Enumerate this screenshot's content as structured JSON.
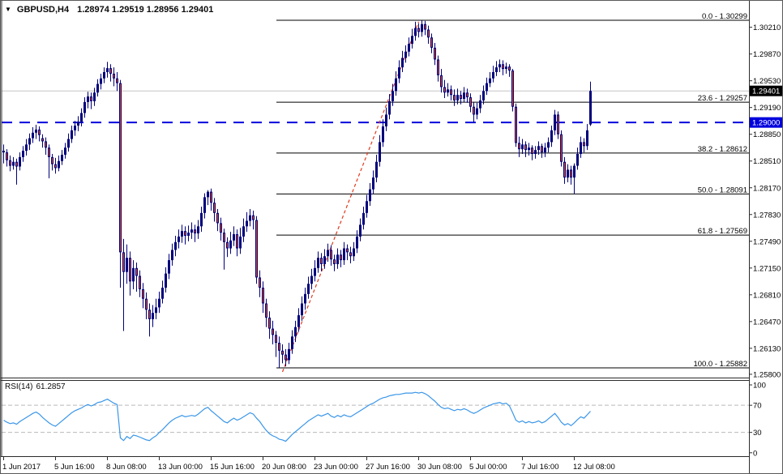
{
  "title": {
    "symbol": "GBPUSD,H4",
    "ohlc": "1.28974 1.29519 1.28956 1.29401"
  },
  "rsi_label": {
    "name": "RSI(14)",
    "value": "61.2857"
  },
  "colors": {
    "background": "#ffffff",
    "bull": "#00007b",
    "bear_core": "#e8491b",
    "outline": "#00007b",
    "fib_line": "#000000",
    "text": "#000000",
    "hline": "#0000dd",
    "hline_tag_bg": "#0000dd",
    "current_line": "#c6c6c6",
    "current_tag_bg": "#000000",
    "tag_text": "#ffffff",
    "rsi_line": "#3a96e8",
    "rsi_grid": "#b9b9b9",
    "trendline": "#e03a1e",
    "border": "#2b2b2b"
  },
  "chart_data": {
    "type": "candlestick",
    "title": "GBPUSD,H4",
    "symbol": "GBPUSD",
    "timeframe": "H4",
    "current_bar": {
      "open": 1.28974,
      "high": 1.29519,
      "low": 1.28956,
      "close": 1.29401
    },
    "price_axis": {
      "ylim": [
        1.25758,
        1.30546
      ],
      "ticks": [
        "1.30210",
        "1.29870",
        "1.29530",
        "1.29190",
        "1.28850",
        "1.28510",
        "1.28170",
        "1.27830",
        "1.27490",
        "1.27150",
        "1.26810",
        "1.26470",
        "1.26130",
        "1.25800"
      ]
    },
    "time_axis": {
      "labels": [
        {
          "bar": 0,
          "text": "1 Jun 2017"
        },
        {
          "bar": 16,
          "text": "5 Jun 16:00"
        },
        {
          "bar": 32,
          "text": "8 Jun 08:00"
        },
        {
          "bar": 48,
          "text": "13 Jun 00:00"
        },
        {
          "bar": 64,
          "text": "15 Jun 16:00"
        },
        {
          "bar": 80,
          "text": "20 Jun 08:00"
        },
        {
          "bar": 96,
          "text": "23 Jun 00:00"
        },
        {
          "bar": 112,
          "text": "27 Jun 16:00"
        },
        {
          "bar": 128,
          "text": "30 Jun 08:00"
        },
        {
          "bar": 144,
          "text": "5 Jul 00:00"
        },
        {
          "bar": 160,
          "text": "7 Jul 16:00"
        },
        {
          "bar": 176,
          "text": "12 Jul 08:00"
        }
      ]
    },
    "fibonacci": {
      "levels": [
        {
          "pct": "0.0",
          "price_text": "1.30299"
        },
        {
          "pct": "23.6",
          "price_text": "1.29257"
        },
        {
          "pct": "38.2",
          "price_text": "1.28612"
        },
        {
          "pct": "50.0",
          "price_text": "1.28091"
        },
        {
          "pct": "61.8",
          "price_text": "1.27569"
        },
        {
          "pct": "100.0",
          "price_text": "1.25882"
        }
      ]
    },
    "hline": {
      "price": 1.29,
      "label": "1.29000",
      "style": "dashed"
    },
    "current_price": {
      "value": 1.29401,
      "label": "1.29401"
    },
    "trendline": {
      "from_bar": 86,
      "from_price": 1.2583,
      "to_bar": 128,
      "to_price": 1.3028,
      "style": "dashed"
    },
    "candles": [
      [
        1.2864,
        1.2872,
        1.2848,
        1.2862
      ],
      [
        1.2862,
        1.2866,
        1.2844,
        1.2852
      ],
      [
        1.2852,
        1.2858,
        1.2838,
        1.2845
      ],
      [
        1.2845,
        1.2856,
        1.284,
        1.285
      ],
      [
        1.285,
        1.2854,
        1.2821,
        1.2844
      ],
      [
        1.2844,
        1.2862,
        1.2839,
        1.2856
      ],
      [
        1.2856,
        1.287,
        1.285,
        1.2864
      ],
      [
        1.2864,
        1.2879,
        1.2858,
        1.2872
      ],
      [
        1.2872,
        1.2886,
        1.2865,
        1.288
      ],
      [
        1.288,
        1.2894,
        1.2874,
        1.2887
      ],
      [
        1.2887,
        1.2897,
        1.2879,
        1.2891
      ],
      [
        1.2891,
        1.2895,
        1.2876,
        1.2884
      ],
      [
        1.288,
        1.2885,
        1.2868,
        1.2876
      ],
      [
        1.2876,
        1.2881,
        1.2859,
        1.2868
      ],
      [
        1.2868,
        1.2872,
        1.2829,
        1.2856
      ],
      [
        1.2856,
        1.286,
        1.2839,
        1.2847
      ],
      [
        1.2847,
        1.2855,
        1.2835,
        1.2842
      ],
      [
        1.2842,
        1.2858,
        1.2838,
        1.2851
      ],
      [
        1.2851,
        1.2865,
        1.2846,
        1.2859
      ],
      [
        1.2859,
        1.2874,
        1.2854,
        1.2868
      ],
      [
        1.2868,
        1.2886,
        1.2863,
        1.2879
      ],
      [
        1.2879,
        1.2896,
        1.2874,
        1.289
      ],
      [
        1.289,
        1.2902,
        1.2883,
        1.2896
      ],
      [
        1.2896,
        1.2908,
        1.2889,
        1.2901
      ],
      [
        1.2901,
        1.2918,
        1.2895,
        1.2912
      ],
      [
        1.2912,
        1.2932,
        1.2906,
        1.2926
      ],
      [
        1.2926,
        1.2939,
        1.2918,
        1.2933
      ],
      [
        1.2933,
        1.2938,
        1.2917,
        1.2927
      ],
      [
        1.2927,
        1.2944,
        1.2921,
        1.2938
      ],
      [
        1.2938,
        1.2955,
        1.2933,
        1.2949
      ],
      [
        1.2949,
        1.2962,
        1.2942,
        1.2956
      ],
      [
        1.2956,
        1.297,
        1.295,
        1.2964
      ],
      [
        1.2964,
        1.2977,
        1.2957,
        1.2969
      ],
      [
        1.2969,
        1.2974,
        1.2952,
        1.2962
      ],
      [
        1.2962,
        1.297,
        1.2946,
        1.2956
      ],
      [
        1.2956,
        1.2964,
        1.294,
        1.295
      ],
      [
        1.295,
        1.2954,
        1.269,
        1.2735
      ],
      [
        1.2735,
        1.2752,
        1.2635,
        1.271
      ],
      [
        1.271,
        1.2745,
        1.2695,
        1.2728
      ],
      [
        1.2728,
        1.2736,
        1.268,
        1.2698
      ],
      [
        1.2698,
        1.2725,
        1.2688,
        1.2715
      ],
      [
        1.2715,
        1.2722,
        1.2685,
        1.2705
      ],
      [
        1.2705,
        1.2712,
        1.2678,
        1.2688
      ],
      [
        1.2688,
        1.2696,
        1.2664,
        1.2676
      ],
      [
        1.2676,
        1.2684,
        1.265,
        1.2662
      ],
      [
        1.2662,
        1.267,
        1.2628,
        1.265
      ],
      [
        1.265,
        1.2668,
        1.264,
        1.2658
      ],
      [
        1.2658,
        1.2676,
        1.265,
        1.2665
      ],
      [
        1.2665,
        1.2685,
        1.2658,
        1.2676
      ],
      [
        1.2676,
        1.2699,
        1.267,
        1.269
      ],
      [
        1.269,
        1.2716,
        1.2684,
        1.2708
      ],
      [
        1.2708,
        1.2733,
        1.2701,
        1.2725
      ],
      [
        1.2725,
        1.2746,
        1.2718,
        1.2738
      ],
      [
        1.2738,
        1.2756,
        1.273,
        1.2748
      ],
      [
        1.2748,
        1.2764,
        1.274,
        1.2755
      ],
      [
        1.2755,
        1.277,
        1.2747,
        1.2762
      ],
      [
        1.2762,
        1.2768,
        1.2745,
        1.2756
      ],
      [
        1.2756,
        1.2769,
        1.2749,
        1.276
      ],
      [
        1.276,
        1.2773,
        1.2752,
        1.2764
      ],
      [
        1.2764,
        1.277,
        1.2748,
        1.2759
      ],
      [
        1.2759,
        1.2776,
        1.2752,
        1.2768
      ],
      [
        1.2768,
        1.2793,
        1.2761,
        1.2785
      ],
      [
        1.2785,
        1.281,
        1.2778,
        1.2805
      ],
      [
        1.2805,
        1.2814,
        1.2795,
        1.2812
      ],
      [
        1.2812,
        1.2816,
        1.2788,
        1.2798
      ],
      [
        1.2798,
        1.2804,
        1.2774,
        1.2785
      ],
      [
        1.2785,
        1.279,
        1.2762,
        1.2772
      ],
      [
        1.2772,
        1.2779,
        1.275,
        1.276
      ],
      [
        1.276,
        1.2765,
        1.2713,
        1.2748
      ],
      [
        1.2748,
        1.2754,
        1.2729,
        1.274
      ],
      [
        1.274,
        1.2761,
        1.2733,
        1.275
      ],
      [
        1.275,
        1.2768,
        1.2743,
        1.2758
      ],
      [
        1.2758,
        1.2764,
        1.273,
        1.274
      ],
      [
        1.274,
        1.2766,
        1.2733,
        1.2755
      ],
      [
        1.2755,
        1.2778,
        1.2748,
        1.2768
      ],
      [
        1.2768,
        1.2786,
        1.2761,
        1.2775
      ],
      [
        1.2775,
        1.279,
        1.2768,
        1.2782
      ],
      [
        1.2782,
        1.2788,
        1.2764,
        1.2776
      ],
      [
        1.2776,
        1.2781,
        1.2695,
        1.2703
      ],
      [
        1.2703,
        1.2712,
        1.2678,
        1.269
      ],
      [
        1.269,
        1.2698,
        1.2658,
        1.267
      ],
      [
        1.267,
        1.2676,
        1.264,
        1.2652
      ],
      [
        1.2652,
        1.266,
        1.2625,
        1.2638
      ],
      [
        1.2638,
        1.2648,
        1.2618,
        1.263
      ],
      [
        1.263,
        1.2635,
        1.2602,
        1.262
      ],
      [
        1.262,
        1.2628,
        1.25882,
        1.261
      ],
      [
        1.261,
        1.2618,
        1.2594,
        1.2605
      ],
      [
        1.2605,
        1.2612,
        1.259,
        1.2598
      ],
      [
        1.2598,
        1.262,
        1.2593,
        1.2612
      ],
      [
        1.2612,
        1.2636,
        1.2606,
        1.2628
      ],
      [
        1.2628,
        1.2648,
        1.2621,
        1.264
      ],
      [
        1.264,
        1.2664,
        1.2634,
        1.2655
      ],
      [
        1.2655,
        1.2679,
        1.2648,
        1.267
      ],
      [
        1.267,
        1.269,
        1.2662,
        1.2682
      ],
      [
        1.2682,
        1.2704,
        1.2676,
        1.2695
      ],
      [
        1.2695,
        1.2714,
        1.2688,
        1.2705
      ],
      [
        1.2705,
        1.2725,
        1.2698,
        1.2715
      ],
      [
        1.2715,
        1.2736,
        1.2709,
        1.2728
      ],
      [
        1.2728,
        1.2734,
        1.2711,
        1.272
      ],
      [
        1.272,
        1.2739,
        1.2714,
        1.273
      ],
      [
        1.273,
        1.2746,
        1.2723,
        1.2738
      ],
      [
        1.2738,
        1.2744,
        1.2718,
        1.2726
      ],
      [
        1.2726,
        1.2732,
        1.2711,
        1.272
      ],
      [
        1.272,
        1.274,
        1.2714,
        1.2732
      ],
      [
        1.2732,
        1.2738,
        1.2716,
        1.2725
      ],
      [
        1.2725,
        1.2748,
        1.2719,
        1.274
      ],
      [
        1.274,
        1.2745,
        1.2725,
        1.2735
      ],
      [
        1.2735,
        1.2742,
        1.2721,
        1.273
      ],
      [
        1.273,
        1.2748,
        1.2724,
        1.274
      ],
      [
        1.274,
        1.2763,
        1.2734,
        1.2755
      ],
      [
        1.2755,
        1.2778,
        1.2749,
        1.277
      ],
      [
        1.277,
        1.2793,
        1.2764,
        1.2785
      ],
      [
        1.2785,
        1.2808,
        1.2779,
        1.28
      ],
      [
        1.28,
        1.2823,
        1.2794,
        1.2815
      ],
      [
        1.2815,
        1.2839,
        1.2809,
        1.283
      ],
      [
        1.283,
        1.2859,
        1.2824,
        1.285
      ],
      [
        1.285,
        1.2884,
        1.2844,
        1.2875
      ],
      [
        1.2875,
        1.2904,
        1.2869,
        1.2895
      ],
      [
        1.2895,
        1.2919,
        1.2889,
        1.291
      ],
      [
        1.291,
        1.2936,
        1.2904,
        1.2927
      ],
      [
        1.2927,
        1.2949,
        1.2921,
        1.294
      ],
      [
        1.294,
        1.2965,
        1.2934,
        1.2956
      ],
      [
        1.2956,
        1.2979,
        1.295,
        1.297
      ],
      [
        1.297,
        1.2991,
        1.2964,
        1.2982
      ],
      [
        1.2982,
        1.2998,
        1.2976,
        1.299
      ],
      [
        1.299,
        1.3008,
        1.2984,
        1.3
      ],
      [
        1.3,
        1.3019,
        1.2994,
        1.301
      ],
      [
        1.301,
        1.3028,
        1.3004,
        1.302
      ],
      [
        1.302,
        1.3026,
        1.3008,
        1.3015
      ],
      [
        1.3015,
        1.30299,
        1.3009,
        1.3025
      ],
      [
        1.3025,
        1.3029,
        1.3011,
        1.3018
      ],
      [
        1.3018,
        1.3023,
        1.3,
        1.3008
      ],
      [
        1.3008,
        1.3013,
        1.2988,
        1.2995
      ],
      [
        1.2995,
        1.3001,
        1.2973,
        1.298
      ],
      [
        1.298,
        1.2985,
        1.2952,
        1.296
      ],
      [
        1.296,
        1.2968,
        1.2938,
        1.2945
      ],
      [
        1.2945,
        1.2954,
        1.2931,
        1.2938
      ],
      [
        1.2938,
        1.295,
        1.2933,
        1.2942
      ],
      [
        1.2942,
        1.2947,
        1.2928,
        1.2935
      ],
      [
        1.2935,
        1.2942,
        1.2921,
        1.2928
      ],
      [
        1.2928,
        1.2943,
        1.2923,
        1.2935
      ],
      [
        1.2935,
        1.294,
        1.2923,
        1.293
      ],
      [
        1.293,
        1.2945,
        1.2926,
        1.2938
      ],
      [
        1.2938,
        1.2943,
        1.2925,
        1.2932
      ],
      [
        1.2932,
        1.2937,
        1.2913,
        1.292
      ],
      [
        1.292,
        1.2926,
        1.29,
        1.291
      ],
      [
        1.291,
        1.2925,
        1.2904,
        1.2918
      ],
      [
        1.2918,
        1.2935,
        1.2912,
        1.2928
      ],
      [
        1.2928,
        1.2947,
        1.2923,
        1.294
      ],
      [
        1.294,
        1.2957,
        1.2935,
        1.295
      ],
      [
        1.295,
        1.2964,
        1.2945,
        1.2956
      ],
      [
        1.2956,
        1.2972,
        1.2951,
        1.2964
      ],
      [
        1.2964,
        1.2978,
        1.2959,
        1.297
      ],
      [
        1.297,
        1.298,
        1.2964,
        1.2974
      ],
      [
        1.2974,
        1.2979,
        1.296,
        1.2968
      ],
      [
        1.2968,
        1.2976,
        1.2962,
        1.2971
      ],
      [
        1.2971,
        1.2974,
        1.2958,
        1.2966
      ],
      [
        1.2966,
        1.2968,
        1.2914,
        1.292
      ],
      [
        1.292,
        1.2924,
        1.2869,
        1.2874
      ],
      [
        1.2874,
        1.2882,
        1.2856,
        1.2866
      ],
      [
        1.2866,
        1.2879,
        1.286,
        1.2872
      ],
      [
        1.2872,
        1.2876,
        1.2856,
        1.2865
      ],
      [
        1.2865,
        1.2874,
        1.2858,
        1.2868
      ],
      [
        1.2868,
        1.2871,
        1.2852,
        1.286
      ],
      [
        1.286,
        1.287,
        1.2854,
        1.2865
      ],
      [
        1.2865,
        1.2876,
        1.2859,
        1.287
      ],
      [
        1.287,
        1.2873,
        1.2855,
        1.2862
      ],
      [
        1.2862,
        1.2874,
        1.2856,
        1.2868
      ],
      [
        1.2868,
        1.2881,
        1.2862,
        1.2875
      ],
      [
        1.2875,
        1.2896,
        1.2869,
        1.289
      ],
      [
        1.289,
        1.2916,
        1.2884,
        1.291
      ],
      [
        1.291,
        1.2914,
        1.2879,
        1.2885
      ],
      [
        1.2885,
        1.289,
        1.2844,
        1.285
      ],
      [
        1.285,
        1.2856,
        1.2822,
        1.283
      ],
      [
        1.283,
        1.2847,
        1.2824,
        1.284
      ],
      [
        1.284,
        1.2845,
        1.2821,
        1.283
      ],
      [
        1.283,
        1.2848,
        1.28091,
        1.2845
      ],
      [
        1.2845,
        1.2868,
        1.284,
        1.286
      ],
      [
        1.286,
        1.2882,
        1.2855,
        1.2875
      ],
      [
        1.2875,
        1.288,
        1.2862,
        1.287
      ],
      [
        1.287,
        1.2898,
        1.2865,
        1.289
      ],
      [
        1.28974,
        1.29519,
        1.28956,
        1.29401
      ]
    ],
    "rsi": {
      "period": 14,
      "last_value": 61.2857,
      "levels": [
        100,
        70,
        30,
        0
      ],
      "ylim": [
        -5,
        106
      ],
      "values": [
        48,
        45,
        43,
        44,
        42,
        46,
        49,
        52,
        55,
        58,
        60,
        57,
        52,
        48,
        44,
        41,
        39,
        43,
        47,
        51,
        55,
        59,
        62,
        64,
        66,
        69,
        71,
        69,
        71,
        74,
        75,
        77,
        79,
        76,
        73,
        71,
        22,
        18,
        24,
        21,
        26,
        25,
        23,
        21,
        19,
        18,
        22,
        25,
        30,
        34,
        39,
        44,
        48,
        51,
        53,
        55,
        53,
        54,
        55,
        54,
        57,
        61,
        65,
        67,
        62,
        58,
        54,
        50,
        46,
        44,
        48,
        51,
        48,
        50,
        53,
        56,
        59,
        57,
        51,
        46,
        39,
        33,
        28,
        25,
        23,
        20,
        19,
        17,
        22,
        27,
        31,
        35,
        39,
        43,
        47,
        50,
        53,
        56,
        54,
        56,
        58,
        54,
        52,
        55,
        53,
        56,
        54,
        53,
        56,
        59,
        62,
        65,
        68,
        71,
        73,
        76,
        79,
        81,
        82,
        84,
        85,
        86,
        86,
        87,
        88,
        88,
        88,
        89,
        88,
        89,
        87,
        84,
        80,
        76,
        71,
        67,
        65,
        66,
        64,
        62,
        64,
        63,
        65,
        63,
        60,
        58,
        60,
        63,
        66,
        68,
        70,
        72,
        73,
        74,
        72,
        73,
        69,
        59,
        48,
        45,
        47,
        44,
        46,
        44,
        45,
        47,
        44,
        46,
        50,
        54,
        58,
        52,
        45,
        41,
        43,
        40,
        44,
        49,
        53,
        51,
        56,
        61.2857
      ]
    }
  }
}
